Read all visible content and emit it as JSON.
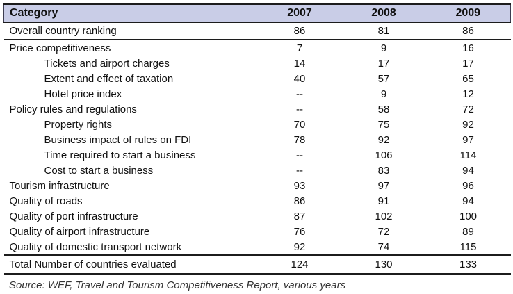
{
  "table": {
    "header": {
      "category": "Category",
      "years": [
        "2007",
        "2008",
        "2009"
      ]
    },
    "rows": [
      {
        "label": "Overall country ranking",
        "indent": false,
        "values": [
          "86",
          "81",
          "86"
        ]
      },
      {
        "label": "Price competitiveness",
        "indent": false,
        "values": [
          "7",
          "9",
          "16"
        ]
      },
      {
        "label": "Tickets and airport charges",
        "indent": true,
        "values": [
          "14",
          "17",
          "17"
        ]
      },
      {
        "label": "Extent and effect of taxation",
        "indent": true,
        "values": [
          "40",
          "57",
          "65"
        ]
      },
      {
        "label": "Hotel price index",
        "indent": true,
        "values": [
          "--",
          "9",
          "12"
        ]
      },
      {
        "label": "Policy rules and regulations",
        "indent": false,
        "values": [
          "--",
          "58",
          "72"
        ]
      },
      {
        "label": "Property rights",
        "indent": true,
        "values": [
          "70",
          "75",
          "92"
        ]
      },
      {
        "label": "Business impact of rules on FDI",
        "indent": true,
        "values": [
          "78",
          "92",
          "97"
        ]
      },
      {
        "label": "Time required to start a business",
        "indent": true,
        "values": [
          "--",
          "106",
          "114"
        ]
      },
      {
        "label": "Cost to start a business",
        "indent": true,
        "values": [
          "--",
          "83",
          "94"
        ]
      },
      {
        "label": "Tourism infrastructure",
        "indent": false,
        "values": [
          "93",
          "97",
          "96"
        ]
      },
      {
        "label": "Quality of roads",
        "indent": false,
        "values": [
          "86",
          "91",
          "94"
        ]
      },
      {
        "label": "Quality of port infrastructure",
        "indent": false,
        "values": [
          "87",
          "102",
          "100"
        ]
      },
      {
        "label": "Quality of airport infrastructure",
        "indent": false,
        "values": [
          "76",
          "72",
          "89"
        ]
      },
      {
        "label": "Quality of domestic transport network",
        "indent": false,
        "values": [
          "92",
          "74",
          "115"
        ]
      }
    ],
    "total_row": {
      "label": "Total Number of countries evaluated",
      "values": [
        "124",
        "130",
        "133"
      ]
    },
    "source": "Source: WEF, Travel and Tourism Competitiveness Report, various years"
  },
  "colors": {
    "header_bg": "#c9cde7",
    "rule": "#1c1c1c",
    "text": "#111111",
    "source_text": "#333333"
  }
}
